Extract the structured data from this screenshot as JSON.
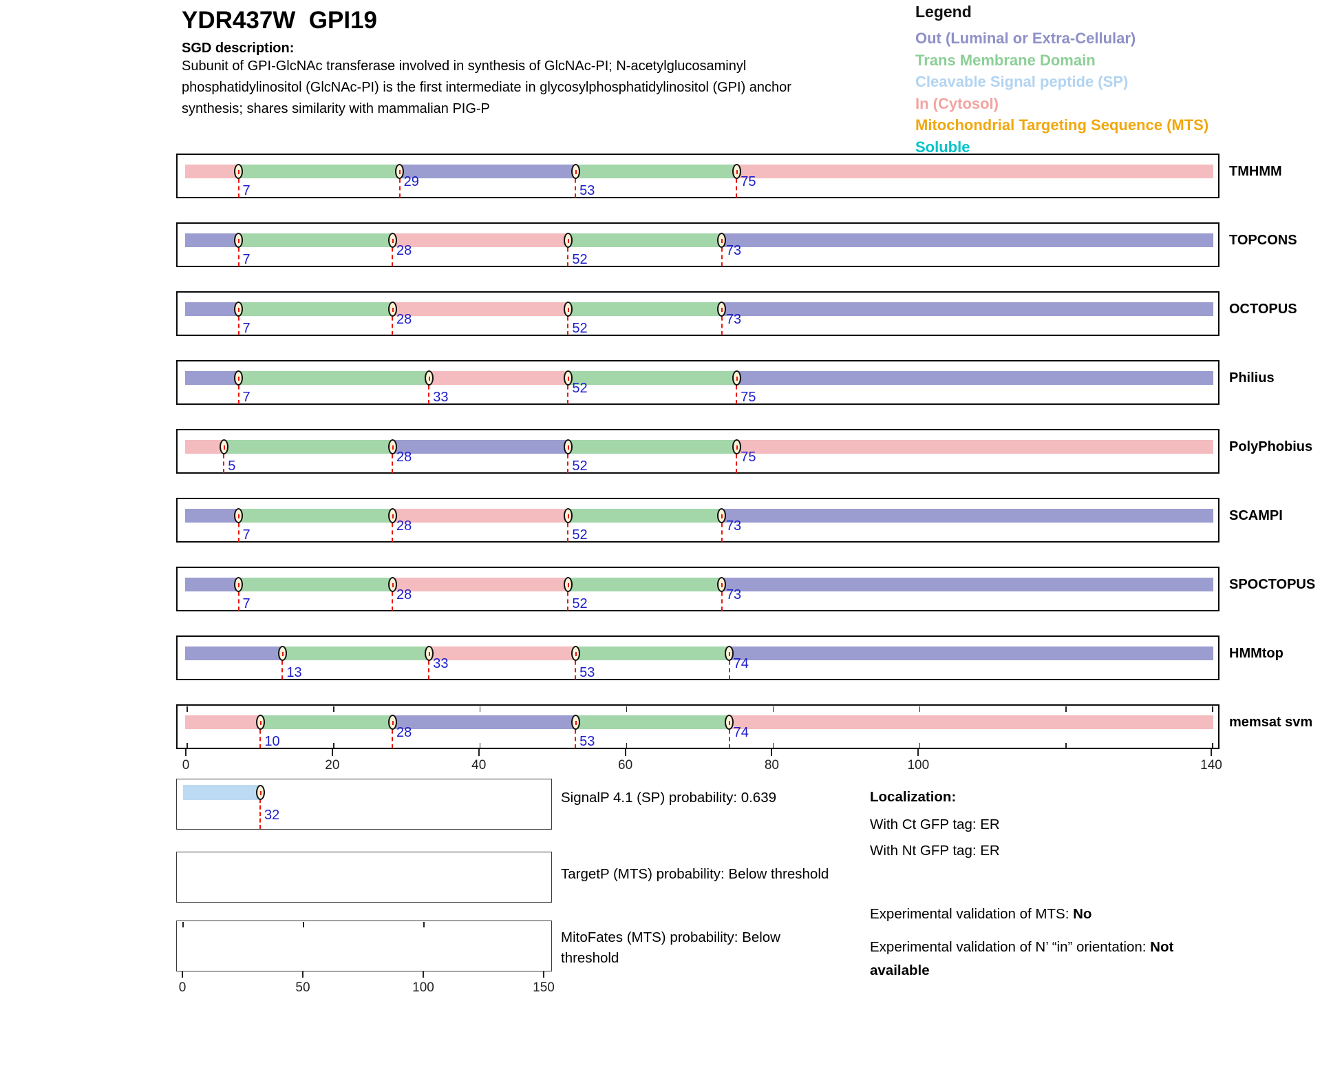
{
  "header": {
    "title": "YDR437W  GPI19",
    "sgd_label": "SGD description:",
    "description_lines": [
      "Subunit of GPI-GlcNAc transferase involved in synthesis of GlcNAc-PI; N-acetylglucosaminyl",
      "phosphatidylinositol (GlcNAc-PI) is the first intermediate in glycosylphosphatidylinositol (GPI) anchor",
      "synthesis; shares similarity with mammalian PIG-P"
    ]
  },
  "legend": {
    "title": "Legend",
    "items": [
      {
        "label": "Out (Luminal or Extra-Cellular)",
        "color": "#8E90C7"
      },
      {
        "label": "Trans Membrane Domain",
        "color": "#8CCF96"
      },
      {
        "label": "Cleavable Signal peptide (SP)",
        "color": "#B2D4F1"
      },
      {
        "label": "In (Cytosol)",
        "color": "#F2A4A1"
      },
      {
        "label": "Mitochondrial Targeting Sequence (MTS)",
        "color": "#F0A80F"
      },
      {
        "label": "Soluble",
        "color": "#00C5C9"
      }
    ]
  },
  "chart_data": {
    "type": "topology-prediction-tracks",
    "x_range": [
      0,
      140
    ],
    "region_colors": {
      "out": "#9B9CCF",
      "tm": "#A3D6A9",
      "in": "#F4BCBE",
      "sp": "#BDDAF3"
    },
    "axis_labels": [
      {
        "pos": 0,
        "text": "0"
      },
      {
        "pos": 20,
        "text": "20"
      },
      {
        "pos": 40,
        "text": "40"
      },
      {
        "pos": 60,
        "text": "60"
      },
      {
        "pos": 80,
        "text": "80"
      },
      {
        "pos": 100,
        "text": "100"
      },
      {
        "pos": 140,
        "text": "140"
      }
    ],
    "ruler_tick_step": 20,
    "tracks": [
      {
        "name": "TMHMM",
        "segments": [
          {
            "from": 0,
            "to": 7,
            "region": "in"
          },
          {
            "from": 7,
            "to": 29,
            "region": "tm"
          },
          {
            "from": 29,
            "to": 53,
            "region": "out"
          },
          {
            "from": 53,
            "to": 75,
            "region": "tm"
          },
          {
            "from": 75,
            "to": 140,
            "region": "in"
          }
        ],
        "markers": [
          {
            "pos": 7,
            "lift": false
          },
          {
            "pos": 29,
            "lift": true
          },
          {
            "pos": 53,
            "lift": false
          },
          {
            "pos": 75,
            "lift": true
          }
        ]
      },
      {
        "name": "TOPCONS",
        "segments": [
          {
            "from": 0,
            "to": 7,
            "region": "out"
          },
          {
            "from": 7,
            "to": 28,
            "region": "tm"
          },
          {
            "from": 28,
            "to": 52,
            "region": "in"
          },
          {
            "from": 52,
            "to": 73,
            "region": "tm"
          },
          {
            "from": 73,
            "to": 140,
            "region": "out"
          }
        ],
        "markers": [
          {
            "pos": 7,
            "lift": false
          },
          {
            "pos": 28,
            "lift": true
          },
          {
            "pos": 52,
            "lift": false
          },
          {
            "pos": 73,
            "lift": true
          }
        ]
      },
      {
        "name": "OCTOPUS",
        "segments": [
          {
            "from": 0,
            "to": 7,
            "region": "out"
          },
          {
            "from": 7,
            "to": 28,
            "region": "tm"
          },
          {
            "from": 28,
            "to": 52,
            "region": "in"
          },
          {
            "from": 52,
            "to": 73,
            "region": "tm"
          },
          {
            "from": 73,
            "to": 140,
            "region": "out"
          }
        ],
        "markers": [
          {
            "pos": 7,
            "lift": false
          },
          {
            "pos": 28,
            "lift": true
          },
          {
            "pos": 52,
            "lift": false
          },
          {
            "pos": 73,
            "lift": true
          }
        ]
      },
      {
        "name": "Philius",
        "segments": [
          {
            "from": 0,
            "to": 7,
            "region": "out"
          },
          {
            "from": 7,
            "to": 33,
            "region": "tm"
          },
          {
            "from": 33,
            "to": 52,
            "region": "in"
          },
          {
            "from": 52,
            "to": 75,
            "region": "tm"
          },
          {
            "from": 75,
            "to": 140,
            "region": "out"
          }
        ],
        "markers": [
          {
            "pos": 7,
            "lift": false
          },
          {
            "pos": 33,
            "lift": false
          },
          {
            "pos": 52,
            "lift": true
          },
          {
            "pos": 75,
            "lift": false
          }
        ]
      },
      {
        "name": "PolyPhobius",
        "segments": [
          {
            "from": 0,
            "to": 5,
            "region": "in"
          },
          {
            "from": 5,
            "to": 28,
            "region": "tm"
          },
          {
            "from": 28,
            "to": 52,
            "region": "out"
          },
          {
            "from": 52,
            "to": 75,
            "region": "tm"
          },
          {
            "from": 75,
            "to": 140,
            "region": "in"
          }
        ],
        "markers": [
          {
            "pos": 5,
            "lift": false
          },
          {
            "pos": 28,
            "lift": true
          },
          {
            "pos": 52,
            "lift": false
          },
          {
            "pos": 75,
            "lift": true
          }
        ]
      },
      {
        "name": "SCAMPI",
        "segments": [
          {
            "from": 0,
            "to": 7,
            "region": "out"
          },
          {
            "from": 7,
            "to": 28,
            "region": "tm"
          },
          {
            "from": 28,
            "to": 52,
            "region": "in"
          },
          {
            "from": 52,
            "to": 73,
            "region": "tm"
          },
          {
            "from": 73,
            "to": 140,
            "region": "out"
          }
        ],
        "markers": [
          {
            "pos": 7,
            "lift": false
          },
          {
            "pos": 28,
            "lift": true
          },
          {
            "pos": 52,
            "lift": false
          },
          {
            "pos": 73,
            "lift": true
          }
        ]
      },
      {
        "name": "SPOCTOPUS",
        "segments": [
          {
            "from": 0,
            "to": 7,
            "region": "out"
          },
          {
            "from": 7,
            "to": 28,
            "region": "tm"
          },
          {
            "from": 28,
            "to": 52,
            "region": "in"
          },
          {
            "from": 52,
            "to": 73,
            "region": "tm"
          },
          {
            "from": 73,
            "to": 140,
            "region": "out"
          }
        ],
        "markers": [
          {
            "pos": 7,
            "lift": false
          },
          {
            "pos": 28,
            "lift": true
          },
          {
            "pos": 52,
            "lift": false
          },
          {
            "pos": 73,
            "lift": true
          }
        ]
      },
      {
        "name": "HMMtop",
        "segments": [
          {
            "from": 0,
            "to": 13,
            "region": "out"
          },
          {
            "from": 13,
            "to": 33,
            "region": "tm"
          },
          {
            "from": 33,
            "to": 53,
            "region": "in"
          },
          {
            "from": 53,
            "to": 74,
            "region": "tm"
          },
          {
            "from": 74,
            "to": 140,
            "region": "out"
          }
        ],
        "markers": [
          {
            "pos": 13,
            "lift": false
          },
          {
            "pos": 33,
            "lift": true
          },
          {
            "pos": 53,
            "lift": false
          },
          {
            "pos": 74,
            "lift": true
          }
        ]
      },
      {
        "name": "memsat svm",
        "ruler": true,
        "segments": [
          {
            "from": 0,
            "to": 10,
            "region": "in"
          },
          {
            "from": 10,
            "to": 28,
            "region": "tm"
          },
          {
            "from": 28,
            "to": 53,
            "region": "out"
          },
          {
            "from": 53,
            "to": 74,
            "region": "tm"
          },
          {
            "from": 74,
            "to": 140,
            "region": "in"
          }
        ],
        "markers": [
          {
            "pos": 10,
            "lift": false
          },
          {
            "pos": 28,
            "lift": true
          },
          {
            "pos": 53,
            "lift": false
          },
          {
            "pos": 74,
            "lift": true
          }
        ]
      }
    ],
    "probability_plots": [
      {
        "name": "signalp",
        "x_range": [
          0,
          150
        ],
        "bar": {
          "from": 0,
          "to": 32,
          "region": "sp"
        },
        "markers": [
          {
            "pos": 32
          }
        ],
        "ticks_top": [],
        "axis_labels": []
      },
      {
        "name": "targetp",
        "x_range": [
          0,
          150
        ],
        "bar": null,
        "markers": [],
        "ticks_top": [],
        "axis_labels": []
      },
      {
        "name": "mitofates",
        "x_range": [
          0,
          150
        ],
        "bar": null,
        "markers": [],
        "ticks_top": [
          0,
          50,
          100
        ],
        "axis_labels": [
          {
            "pos": 0,
            "text": "0"
          },
          {
            "pos": 50,
            "text": "50"
          },
          {
            "pos": 100,
            "text": "100"
          },
          {
            "pos": 150,
            "text": "150"
          }
        ]
      }
    ]
  },
  "annotations": {
    "signalp_text": "SignalP 4.1 (SP) probability: 0.639",
    "targetp_text": "TargetP (MTS) probability: Below threshold",
    "mitofates_lines": [
      "MitoFates (MTS) probability: Below",
      "threshold"
    ],
    "localization_title": "Localization:",
    "ct_line": "With Ct GFP tag: ER",
    "nt_line": "With Nt GFP tag: ER",
    "mts_prefix": "Experimental validation of MTS: ",
    "mts_value": "No",
    "orientation_prefix": "Experimental validation of N’ “in” orientation: ",
    "orientation_value_line1": "Not",
    "orientation_value_line2": "available"
  }
}
